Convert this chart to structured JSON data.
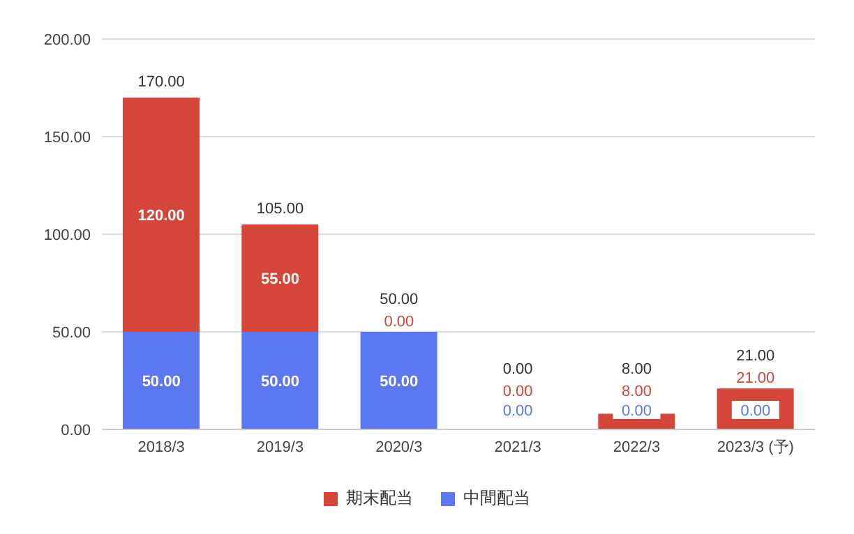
{
  "chart_data": {
    "type": "bar",
    "stacked": true,
    "categories": [
      "2018/3",
      "2019/3",
      "2020/3",
      "2021/3",
      "2022/3",
      "2023/3 (予)"
    ],
    "series": [
      {
        "name": "中間配当",
        "color": "#5b78f2",
        "values": [
          50,
          50,
          50,
          0,
          0,
          0
        ],
        "value_labels": [
          "50.00",
          "50.00",
          "50.00",
          "0.00",
          "0.00",
          "0.00"
        ]
      },
      {
        "name": "期末配当",
        "color": "#d6453a",
        "values": [
          120,
          55,
          0,
          0,
          8,
          21
        ],
        "value_labels": [
          "120.00",
          "55.00",
          "0.00",
          "0.00",
          "8.00",
          "21.00"
        ]
      }
    ],
    "totals": [
      "170.00",
      "105.00",
      "50.00",
      "0.00",
      "8.00",
      "21.00"
    ],
    "ylim": [
      0,
      200
    ],
    "yticks": [
      {
        "value": 0,
        "label": "0.00"
      },
      {
        "value": 50,
        "label": "50.00"
      },
      {
        "value": 100,
        "label": "100.00"
      },
      {
        "value": 150,
        "label": "150.00"
      },
      {
        "value": 200,
        "label": "200.00"
      }
    ],
    "grid": "y",
    "legend": "bottom"
  }
}
